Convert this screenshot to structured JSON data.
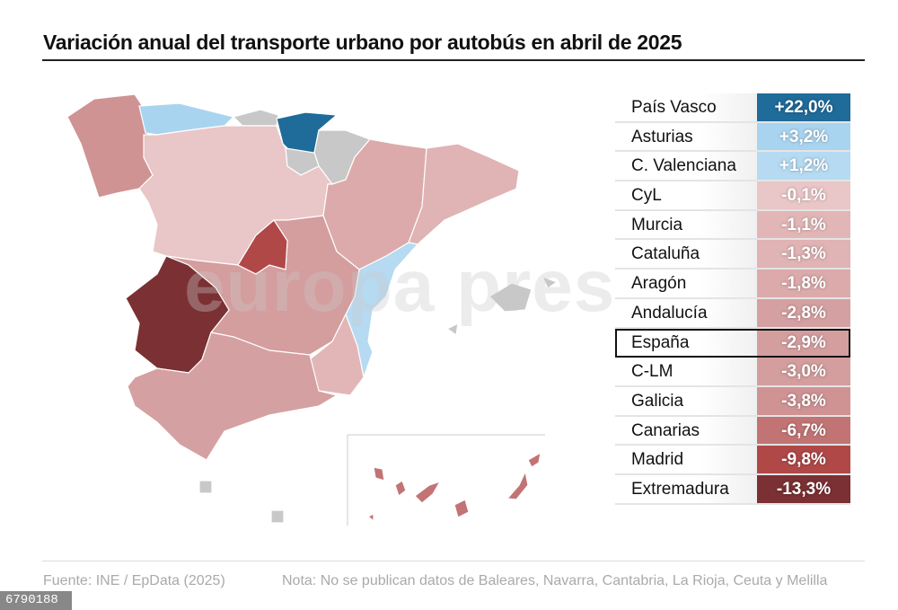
{
  "title": "Variación anual del transporte urbano por autobús en abril de 2025",
  "watermark": "europa press",
  "colors": {
    "no_data": "#c8c8c8",
    "border": "#ffffff"
  },
  "regions": [
    {
      "name": "País Vasco",
      "value": "+22,0%",
      "color": "#1f6b9a"
    },
    {
      "name": "Asturias",
      "value": "+3,2%",
      "color": "#a9d4ef"
    },
    {
      "name": "C. Valenciana",
      "value": "+1,2%",
      "color": "#b5daf1"
    },
    {
      "name": "CyL",
      "value": "-0,1%",
      "color": "#e9c6c7"
    },
    {
      "name": "Murcia",
      "value": "-1,1%",
      "color": "#e2b6b7"
    },
    {
      "name": "Cataluña",
      "value": "-1,3%",
      "color": "#e0b3b4"
    },
    {
      "name": "Aragón",
      "value": "-1,8%",
      "color": "#dcaaab"
    },
    {
      "name": "Andalucía",
      "value": "-2,8%",
      "color": "#d5a0a1"
    },
    {
      "name": "España",
      "value": "-2,9%",
      "color": "#d49e9f",
      "highlight": true
    },
    {
      "name": "C-LM",
      "value": "-3,0%",
      "color": "#d49d9e"
    },
    {
      "name": "Galicia",
      "value": "-3,8%",
      "color": "#cf9394"
    },
    {
      "name": "Canarias",
      "value": "-6,7%",
      "color": "#c27475"
    },
    {
      "name": "Madrid",
      "value": "-9,8%",
      "color": "#b04848"
    },
    {
      "name": "Extremadura",
      "value": "-13,3%",
      "color": "#7b3033"
    }
  ],
  "footer": {
    "source": "Fuente: INE / EpData (2025)",
    "note": "Nota: No se publican datos de Baleares, Navarra, Cantabria, La Rioja, Ceuta y Melilla",
    "image_id": "6790188"
  }
}
